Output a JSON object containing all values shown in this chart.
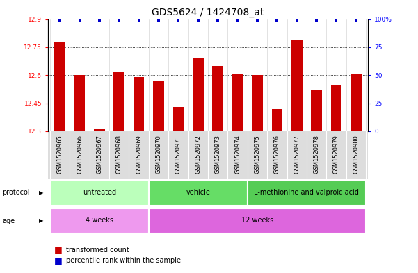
{
  "title": "GDS5624 / 1424708_at",
  "samples": [
    "GSM1520965",
    "GSM1520966",
    "GSM1520967",
    "GSM1520968",
    "GSM1520969",
    "GSM1520970",
    "GSM1520971",
    "GSM1520972",
    "GSM1520973",
    "GSM1520974",
    "GSM1520975",
    "GSM1520976",
    "GSM1520977",
    "GSM1520978",
    "GSM1520979",
    "GSM1520980"
  ],
  "bar_values": [
    12.78,
    12.6,
    12.31,
    12.62,
    12.59,
    12.57,
    12.43,
    12.69,
    12.65,
    12.61,
    12.6,
    12.42,
    12.79,
    12.52,
    12.55,
    12.61
  ],
  "ymin": 12.3,
  "ymax": 12.9,
  "yticks": [
    12.3,
    12.45,
    12.6,
    12.75,
    12.9
  ],
  "right_yticks": [
    0,
    25,
    50,
    75,
    100
  ],
  "bar_color": "#cc0000",
  "percentile_color": "#0000cc",
  "grid_lines": [
    12.45,
    12.6,
    12.75
  ],
  "protocol_groups": [
    {
      "label": "untreated",
      "start": 0,
      "end": 5,
      "color": "#bbffbb"
    },
    {
      "label": "vehicle",
      "start": 5,
      "end": 10,
      "color": "#66dd66"
    },
    {
      "label": "L-methionine and valproic acid",
      "start": 10,
      "end": 16,
      "color": "#55cc55"
    }
  ],
  "age_groups": [
    {
      "label": "4 weeks",
      "start": 0,
      "end": 5,
      "color": "#ee99ee"
    },
    {
      "label": "12 weeks",
      "start": 5,
      "end": 16,
      "color": "#dd66dd"
    }
  ],
  "legend_items": [
    {
      "label": "transformed count",
      "color": "#cc0000"
    },
    {
      "label": "percentile rank within the sample",
      "color": "#0000cc"
    }
  ],
  "bar_width": 0.55,
  "tick_label_fontsize": 6.5,
  "title_fontsize": 10,
  "sample_label_fontsize": 6.0
}
